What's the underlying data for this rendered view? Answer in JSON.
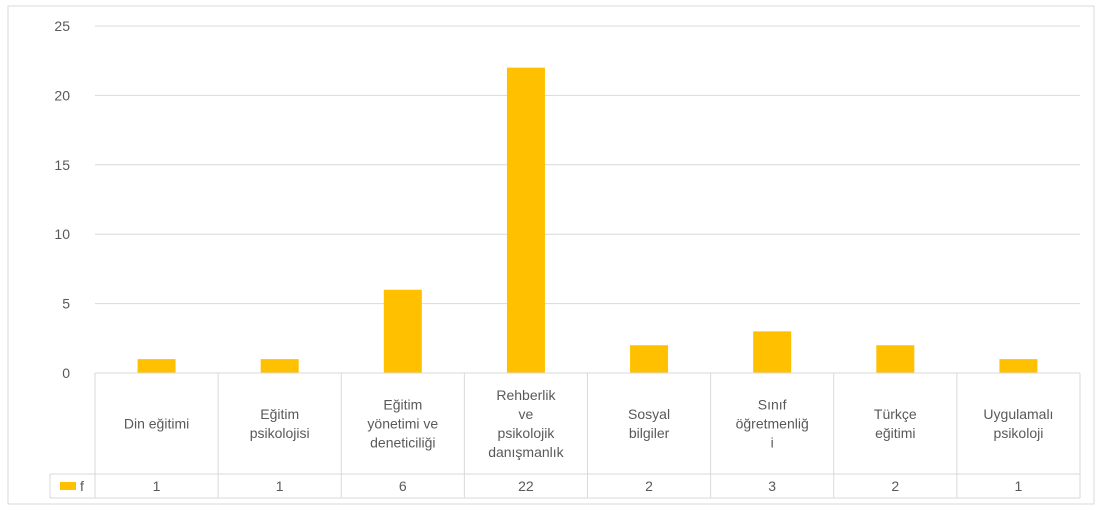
{
  "chart_data": {
    "type": "bar",
    "title": "",
    "xlabel": "",
    "ylabel": "",
    "categories": [
      [
        "Din eğitimi"
      ],
      [
        "Eğitim",
        "psikolojisi"
      ],
      [
        "Eğitim",
        "yönetimi ve",
        "deneticiliği"
      ],
      [
        "Rehberlik",
        "ve",
        "psikolojik",
        "danışmanlık"
      ],
      [
        "Sosyal",
        "bilgiler"
      ],
      [
        "Sınıf",
        "öğretmenliğ",
        "i"
      ],
      [
        "Türkçe",
        "eğitimi"
      ],
      [
        "Uygulamalı",
        "psikoloji"
      ]
    ],
    "series": [
      {
        "name": "f",
        "color": "#FFC000",
        "values": [
          1,
          1,
          6,
          22,
          2,
          3,
          2,
          1
        ]
      }
    ],
    "ylim": [
      0,
      25
    ],
    "yticks": [
      "0",
      "5",
      "10",
      "15",
      "20",
      "25"
    ],
    "grid": true,
    "legend": "data-table-left",
    "data_table": true,
    "colors": {
      "bar": "#FFC000",
      "grid": "#D9D9D9",
      "text": "#595959"
    }
  }
}
